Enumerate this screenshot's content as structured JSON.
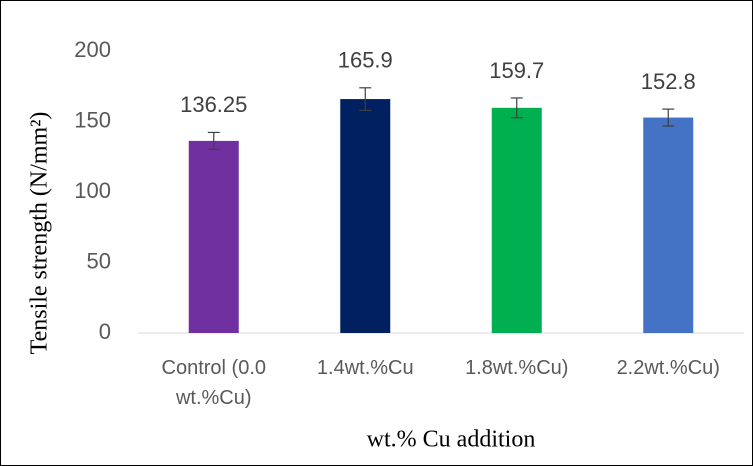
{
  "chart_data": {
    "type": "bar",
    "categories": [
      "Control (0.0 wt.%Cu)",
      "1.4wt.%Cu",
      "1.8wt.%Cu)",
      "2.2wt.%Cu)"
    ],
    "values": [
      136.25,
      165.9,
      159.7,
      152.8
    ],
    "errors": [
      6,
      8,
      7,
      6
    ],
    "colors": [
      "#7030a0",
      "#002060",
      "#00b050",
      "#4472c4"
    ],
    "ylim": [
      0,
      200
    ],
    "yticks": [
      0,
      50,
      100,
      150,
      200
    ],
    "grid": false,
    "x_label": "wt.% Cu addition",
    "y_label": "Tensile strength (N/mm²)"
  }
}
